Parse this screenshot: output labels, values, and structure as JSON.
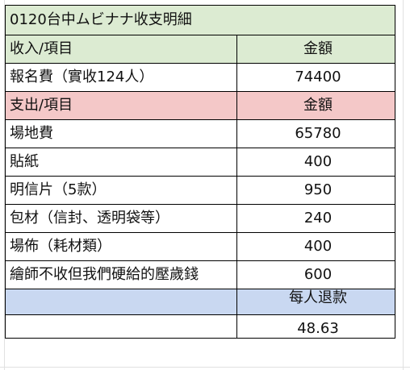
{
  "title": "0120台中ムビナナ收支明細",
  "income": {
    "header": {
      "item": "收入/項目",
      "amount": "金額"
    },
    "rows": [
      {
        "item": "報名費（實收124人）",
        "amount": "74400"
      }
    ]
  },
  "expense": {
    "header": {
      "item": "支出/項目",
      "amount": "金額"
    },
    "rows": [
      {
        "item": "場地費",
        "amount": "65780"
      },
      {
        "item": "貼紙",
        "amount": "400"
      },
      {
        "item": "明信片（5款）",
        "amount": "950"
      },
      {
        "item": "包材（信封、透明袋等）",
        "amount": "240"
      },
      {
        "item": "場佈（耗材類）",
        "amount": "400"
      },
      {
        "item": "繪師不收但我們硬給的壓歲錢",
        "amount": "600"
      }
    ]
  },
  "refund": {
    "label": "每人退款",
    "value": "48.63"
  },
  "colors": {
    "title_bg": "#dcebd2",
    "income_header_bg": "#dcebd2",
    "expense_header_bg": "#f4c8c8",
    "refund_header_bg": "#c9d8f1"
  }
}
